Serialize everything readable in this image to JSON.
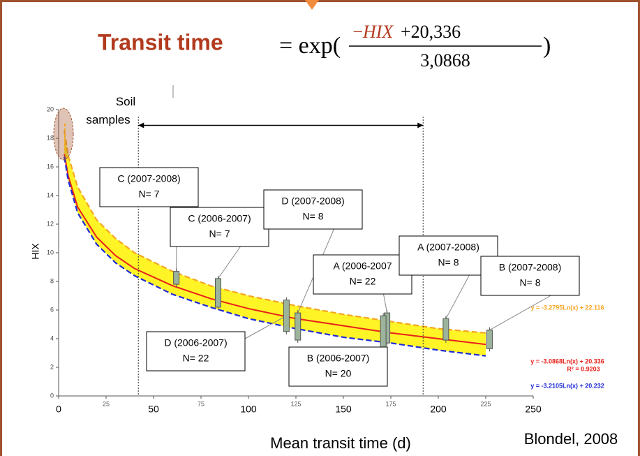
{
  "chart_data": {
    "type": "line",
    "title": "Transit time",
    "formula": {
      "prefix": "= exp(",
      "numerator_sign": "−",
      "numerator_var": "HIX",
      "numerator_rest": "+20,336",
      "denominator": "3,0868",
      "suffix": ")"
    },
    "x_label": "Mean transit time (d)",
    "y_label": "HIX",
    "source": "Blondel, 2008",
    "note": "Soil samples",
    "xlim": [
      0,
      250
    ],
    "xticks": [
      0,
      25,
      50,
      75,
      100,
      125,
      150,
      175,
      200,
      225,
      250
    ],
    "ylim": [
      0,
      20
    ],
    "yticks": [
      0,
      2,
      4,
      6,
      8,
      10,
      12,
      14,
      16,
      18,
      20
    ],
    "x": [
      3,
      5,
      10,
      20,
      30,
      40,
      60,
      80,
      100,
      125,
      150,
      175,
      200,
      225
    ],
    "series": [
      {
        "name": "y = -3.2795Ln(x) + 22.116",
        "color": "#f5a623",
        "values": [
          18.5,
          16.8,
          14.6,
          12.3,
          11.0,
          10.0,
          8.7,
          7.7,
          7.0,
          6.3,
          5.7,
          5.2,
          4.7,
          4.4
        ]
      },
      {
        "name": "y = -3.0868Ln(x) + 20.336",
        "color": "#e8221a",
        "annotation": "R² = 0.9203",
        "values": [
          16.9,
          15.4,
          13.2,
          11.1,
          9.8,
          8.9,
          7.7,
          6.8,
          6.1,
          5.4,
          4.9,
          4.4,
          4.0,
          3.6
        ]
      },
      {
        "name": "y = -3.2105Ln(x) + 20.232",
        "color": "#1f2bd6",
        "values": [
          16.7,
          15.1,
          12.8,
          10.6,
          9.3,
          8.4,
          7.1,
          6.2,
          5.4,
          4.7,
          4.1,
          3.7,
          3.2,
          2.8
        ]
      }
    ],
    "boxes": [
      {
        "name": "C (2007-2008)",
        "n": "N= 7",
        "x": 62,
        "low": 7.8,
        "high": 8.7
      },
      {
        "name": "C (2006-2007)",
        "n": "N= 7",
        "x": 84,
        "low": 6.2,
        "high": 8.2
      },
      {
        "name": "D (2007-2008)",
        "n": "N= 8",
        "x": 126,
        "low": 3.9,
        "high": 5.8
      },
      {
        "name": "A (2006-2007",
        "n": "N= 22",
        "x": 173,
        "low": 3.7,
        "high": 5.8
      },
      {
        "name": "A (2007-2008)",
        "n": "N= 8",
        "x": 204,
        "low": 3.9,
        "high": 5.4
      },
      {
        "name": "B (2007-2008)",
        "n": "N= 8",
        "x": 227,
        "low": 3.3,
        "high": 4.6
      },
      {
        "name": "D (2006-2007)",
        "n": "N= 22",
        "x": 120,
        "low": 4.5,
        "high": 6.7
      },
      {
        "name": "B (2006-2007)",
        "n": "N= 20",
        "x": 171,
        "low": 3.2,
        "high": 5.6
      }
    ],
    "period_start": 42,
    "period_end": 192,
    "arrow_y": 18.9
  }
}
